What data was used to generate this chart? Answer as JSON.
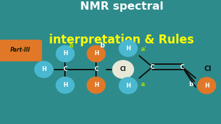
{
  "bg_color": "#2e8b8b",
  "title_line1": "NMR spectral",
  "title_line2": "interpretation & Rules",
  "title1_color": "#ffffff",
  "title2_color": "#ffff00",
  "part_label": "Part-III",
  "part_bg": "#e07828",
  "part_text_color": "#1a1a00",
  "blue_color": "#4ab8d0",
  "orange_color": "#e07828",
  "white_color": "#e8e8d8",
  "black_color": "#111111",
  "label_yellow": "#aadd00",
  "label_white": "#ffffff",
  "mol1_c1": [
    0.295,
    0.44
  ],
  "mol1_c2": [
    0.435,
    0.44
  ],
  "mol2_c1": [
    0.69,
    0.46
  ],
  "mol2_c2": [
    0.825,
    0.46
  ]
}
